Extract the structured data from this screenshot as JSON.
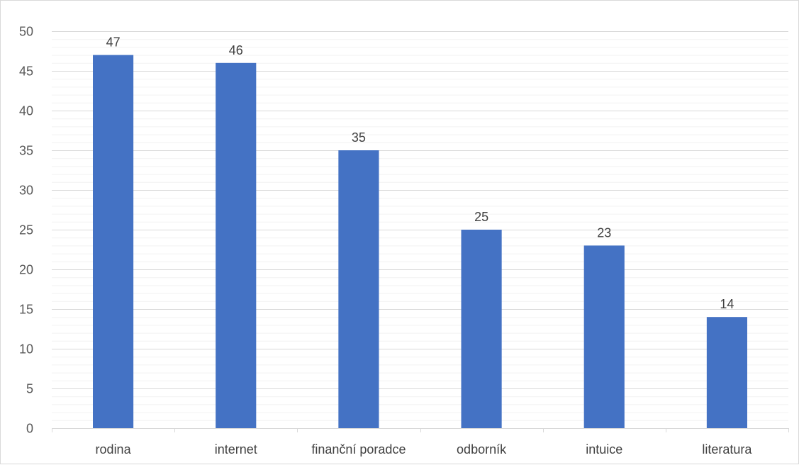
{
  "chart_data": {
    "type": "bar",
    "categories": [
      "rodina",
      "internet",
      "finanční poradce",
      "odborník",
      "intuice",
      "literatura"
    ],
    "values": [
      47,
      46,
      35,
      25,
      23,
      14
    ],
    "ylim": [
      0,
      50
    ],
    "ytick_step": 5,
    "minor_grid_step": 1,
    "y_ticks": [
      "0",
      "5",
      "10",
      "15",
      "20",
      "25",
      "30",
      "35",
      "40",
      "45",
      "50"
    ],
    "grid": true,
    "legend": "none",
    "data_labels": true,
    "bar_color": "#4472c4",
    "major_grid_color": "#d9d9d9",
    "minor_grid_color": "#f2f2f2"
  }
}
